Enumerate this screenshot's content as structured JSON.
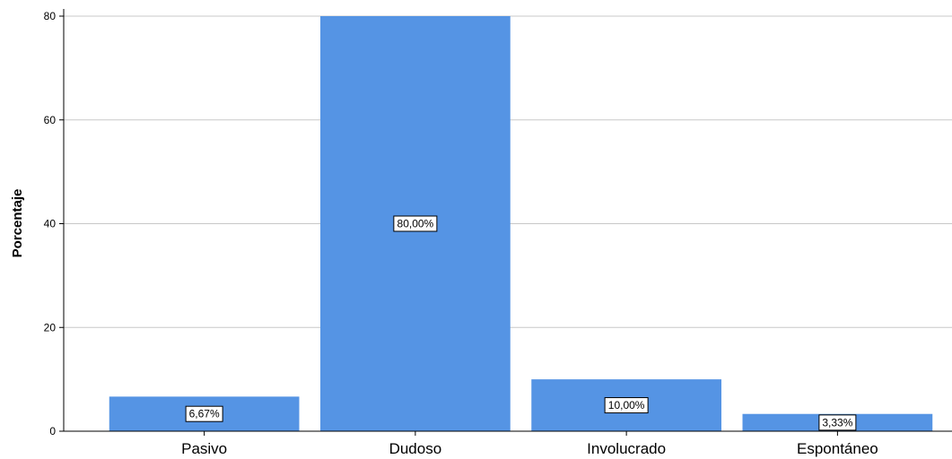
{
  "chart_data": {
    "type": "bar",
    "categories": [
      "Pasivo",
      "Dudoso",
      "Involucrado",
      "Espontáneo"
    ],
    "values": [
      6.67,
      80.0,
      10.0,
      3.33
    ],
    "data_labels": [
      "6,67%",
      "80,00%",
      "10,00%",
      "3,33%"
    ],
    "ylabel": "Porcentaje",
    "xlabel": "",
    "ylim": [
      0,
      80
    ],
    "yticks": [
      0,
      20,
      40,
      60,
      80
    ],
    "grid": true,
    "bar_color": "#5594e4",
    "grid_color": "#c8c8c8"
  }
}
